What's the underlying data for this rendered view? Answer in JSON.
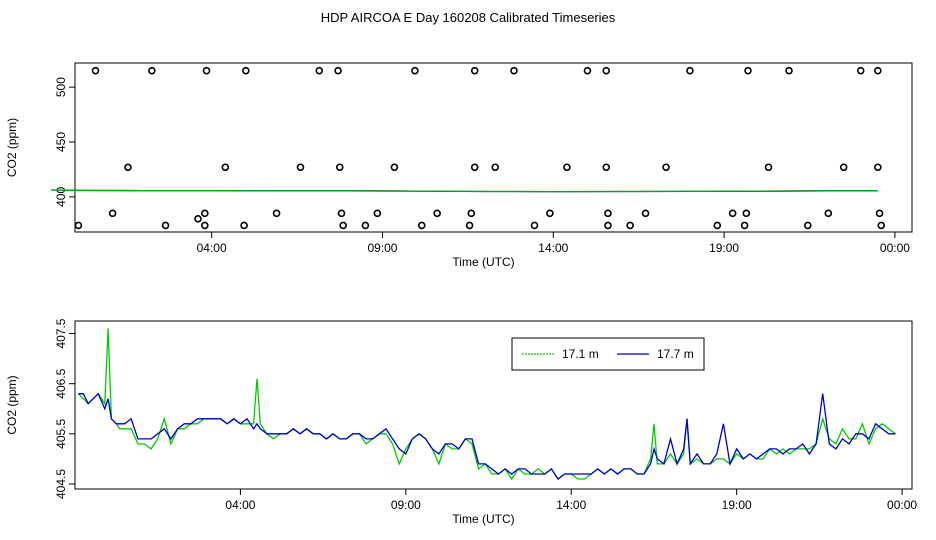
{
  "title": "HDP AIRCOA E  Day 160208  Calibrated Timeseries",
  "chart_data": [
    {
      "type": "scatter",
      "xlabel": "Time (UTC)",
      "ylabel": "CO2 (ppm)",
      "x_unit": "hours since 00:00 on day 160208",
      "xlim": [
        0,
        24.5
      ],
      "ylim": [
        368,
        522
      ],
      "x_ticks": [
        4,
        9,
        14,
        19,
        24
      ],
      "x_tick_labels": [
        "04:00",
        "09:00",
        "14:00",
        "19:00",
        "00:00"
      ],
      "y_ticks": [
        400,
        450,
        500
      ],
      "y_tick_labels": [
        "400",
        "450",
        "500"
      ],
      "grid": false,
      "series": [
        {
          "marker": "open-circle",
          "color": "#000000",
          "x": [
            0.6,
            2.25,
            3.85,
            5.0,
            7.15,
            7.7,
            9.95,
            11.7,
            12.85,
            15.0,
            15.55,
            18.0,
            19.7,
            20.9,
            23.0,
            23.5,
            1.55,
            4.4,
            6.6,
            7.75,
            9.35,
            11.7,
            12.3,
            14.4,
            15.55,
            17.3,
            20.3,
            22.5,
            23.5,
            1.1,
            3.6,
            3.8,
            5.9,
            7.8,
            8.85,
            10.6,
            11.6,
            13.9,
            15.6,
            16.7,
            19.25,
            19.65,
            22.05,
            23.55,
            0.1,
            2.65,
            3.8,
            4.95,
            7.85,
            8.5,
            10.15,
            11.55,
            13.45,
            15.6,
            16.25,
            18.8,
            19.6,
            21.45,
            23.6
          ],
          "y": [
            515,
            515,
            515,
            515,
            515,
            515,
            515,
            515,
            515,
            515,
            515,
            515,
            515,
            515,
            515,
            515,
            427,
            427,
            427,
            427,
            427,
            427,
            427,
            427,
            427,
            427,
            427,
            427,
            427,
            385,
            380,
            385,
            385,
            385,
            385,
            385,
            385,
            385,
            385,
            385,
            385,
            385,
            385,
            385,
            374,
            374,
            374,
            374,
            374,
            374,
            374,
            374,
            374,
            374,
            374,
            374,
            374,
            374,
            374
          ]
        },
        {
          "name": "17.7 m",
          "marker": "line",
          "color": "#0000cc",
          "x": [
            -0.7,
            0,
            2,
            4,
            6,
            8,
            10,
            12,
            14,
            16,
            18,
            20,
            22,
            23.5
          ],
          "y": [
            406.3,
            405.9,
            405.7,
            405.7,
            405.5,
            405.5,
            405.3,
            404.9,
            404.8,
            404.9,
            405.0,
            405.2,
            405.5,
            405.6
          ]
        },
        {
          "name": "17.1 m",
          "marker": "line",
          "color": "#00aa00",
          "x": [
            -0.7,
            0,
            2,
            4,
            6,
            8,
            10,
            12,
            14,
            16,
            18,
            20,
            22,
            23.5
          ],
          "y": [
            406.3,
            405.9,
            405.7,
            405.7,
            405.5,
            405.5,
            405.3,
            404.9,
            404.8,
            404.9,
            405.0,
            405.2,
            405.5,
            405.6
          ]
        }
      ]
    },
    {
      "type": "line",
      "xlabel": "Time (UTC)",
      "ylabel": "CO2 (ppm)",
      "x_unit": "hours since 00:00 on day 160208",
      "xlim": [
        -1.0,
        24.3
      ],
      "ylim": [
        404.4,
        407.75
      ],
      "x_ticks": [
        4,
        9,
        14,
        19,
        24
      ],
      "x_tick_labels": [
        "04:00",
        "09:00",
        "14:00",
        "19:00",
        "00:00"
      ],
      "y_ticks": [
        404.5,
        405.5,
        406.5,
        407.5
      ],
      "y_tick_labels": [
        "404.5",
        "405.5",
        "406.5",
        "407.5"
      ],
      "grid": false,
      "legend_position": "top-right",
      "series": [
        {
          "name": "17.1 m",
          "color": "#00cc00",
          "x": [
            -0.9,
            -0.75,
            -0.6,
            -0.45,
            -0.3,
            -0.1,
            0.0,
            0.1,
            0.25,
            0.35,
            0.5,
            0.7,
            0.9,
            1.1,
            1.3,
            1.5,
            1.7,
            1.9,
            2.1,
            2.3,
            2.5,
            2.7,
            2.9,
            3.1,
            3.4,
            3.6,
            3.8,
            4.0,
            4.2,
            4.4,
            4.5,
            4.6,
            4.8,
            5.0,
            5.2,
            5.4,
            5.6,
            5.8,
            6.0,
            6.2,
            6.4,
            6.6,
            6.8,
            7.0,
            7.2,
            7.4,
            7.6,
            7.8,
            8.0,
            8.2,
            8.4,
            8.6,
            8.8,
            9.0,
            9.2,
            9.4,
            9.6,
            9.8,
            10.0,
            10.2,
            10.4,
            10.6,
            10.8,
            11.0,
            11.2,
            11.4,
            11.6,
            11.8,
            12.0,
            12.2,
            12.4,
            12.6,
            12.8,
            13.0,
            13.2,
            13.4,
            13.6,
            13.8,
            14.0,
            14.2,
            14.4,
            14.6,
            14.8,
            15.0,
            15.2,
            15.4,
            15.6,
            15.8,
            16.0,
            16.2,
            16.4,
            16.5,
            16.6,
            16.8,
            17.0,
            17.2,
            17.4,
            17.5,
            17.6,
            17.8,
            18.0,
            18.2,
            18.4,
            18.6,
            18.8,
            19.0,
            19.2,
            19.4,
            19.6,
            19.8,
            20.0,
            20.2,
            20.4,
            20.6,
            20.8,
            21.0,
            21.2,
            21.4,
            21.6,
            21.8,
            22.0,
            22.2,
            22.4,
            22.6,
            22.8,
            23.0,
            23.2,
            23.4,
            23.6,
            23.8
          ],
          "y": [
            406.3,
            406.2,
            406.1,
            406.2,
            406.3,
            406.1,
            407.6,
            405.8,
            405.7,
            405.6,
            405.6,
            405.6,
            405.3,
            405.3,
            405.2,
            405.4,
            405.8,
            405.3,
            405.6,
            405.6,
            405.7,
            405.7,
            405.8,
            405.8,
            405.8,
            405.7,
            405.8,
            405.7,
            405.7,
            405.7,
            406.6,
            405.7,
            405.5,
            405.4,
            405.5,
            405.5,
            405.6,
            405.5,
            405.6,
            405.5,
            405.5,
            405.4,
            405.5,
            405.4,
            405.4,
            405.5,
            405.5,
            405.3,
            405.4,
            405.5,
            405.5,
            405.3,
            404.9,
            405.2,
            405.4,
            405.5,
            405.4,
            405.2,
            404.9,
            405.3,
            405.2,
            405.2,
            405.4,
            405.3,
            404.8,
            404.9,
            404.7,
            404.7,
            404.8,
            404.6,
            404.8,
            404.7,
            404.7,
            404.8,
            404.7,
            404.8,
            404.6,
            404.7,
            404.7,
            404.6,
            404.6,
            404.7,
            404.8,
            404.7,
            404.8,
            404.7,
            404.8,
            404.8,
            404.7,
            404.7,
            405.0,
            405.7,
            404.9,
            404.9,
            405.1,
            404.9,
            405.1,
            405.8,
            404.9,
            405.0,
            404.9,
            404.9,
            405.0,
            405.0,
            404.9,
            405.1,
            405.0,
            405.1,
            405.0,
            405.0,
            405.2,
            405.1,
            405.2,
            405.1,
            405.2,
            405.2,
            405.2,
            405.3,
            405.8,
            405.4,
            405.3,
            405.6,
            405.4,
            405.4,
            405.7,
            405.3,
            405.6,
            405.7,
            405.6,
            405.5
          ]
        },
        {
          "name": "17.7 m",
          "color": "#0000cc",
          "x": [
            -0.9,
            -0.75,
            -0.6,
            -0.45,
            -0.3,
            -0.1,
            0.0,
            0.1,
            0.25,
            0.35,
            0.5,
            0.7,
            0.9,
            1.1,
            1.3,
            1.5,
            1.7,
            1.9,
            2.1,
            2.3,
            2.5,
            2.7,
            2.9,
            3.1,
            3.4,
            3.6,
            3.8,
            4.0,
            4.2,
            4.4,
            4.5,
            4.6,
            4.8,
            5.0,
            5.2,
            5.4,
            5.6,
            5.8,
            6.0,
            6.2,
            6.4,
            6.6,
            6.8,
            7.0,
            7.2,
            7.4,
            7.6,
            7.8,
            8.0,
            8.2,
            8.4,
            8.6,
            8.8,
            9.0,
            9.2,
            9.4,
            9.6,
            9.8,
            10.0,
            10.2,
            10.4,
            10.6,
            10.8,
            11.0,
            11.2,
            11.4,
            11.6,
            11.8,
            12.0,
            12.2,
            12.4,
            12.6,
            12.8,
            13.0,
            13.2,
            13.4,
            13.6,
            13.8,
            14.0,
            14.2,
            14.4,
            14.6,
            14.8,
            15.0,
            15.2,
            15.4,
            15.6,
            15.8,
            16.0,
            16.2,
            16.4,
            16.5,
            16.6,
            16.8,
            17.0,
            17.2,
            17.4,
            17.5,
            17.6,
            17.8,
            18.0,
            18.2,
            18.4,
            18.6,
            18.8,
            19.0,
            19.2,
            19.4,
            19.6,
            19.8,
            20.0,
            20.2,
            20.4,
            20.6,
            20.8,
            21.0,
            21.2,
            21.4,
            21.6,
            21.8,
            22.0,
            22.2,
            22.4,
            22.6,
            22.8,
            23.0,
            23.2,
            23.4,
            23.6,
            23.8
          ],
          "y": [
            406.3,
            406.3,
            406.1,
            406.2,
            406.3,
            406.0,
            406.2,
            405.8,
            405.7,
            405.7,
            405.7,
            405.8,
            405.4,
            405.4,
            405.4,
            405.5,
            405.6,
            405.4,
            405.6,
            405.7,
            405.7,
            405.8,
            405.8,
            405.8,
            405.8,
            405.7,
            405.8,
            405.7,
            405.8,
            405.6,
            405.7,
            405.6,
            405.5,
            405.5,
            405.5,
            405.5,
            405.6,
            405.5,
            405.6,
            405.5,
            405.5,
            405.4,
            405.5,
            405.4,
            405.4,
            405.5,
            405.5,
            405.4,
            405.4,
            405.5,
            405.6,
            405.4,
            405.2,
            405.1,
            405.4,
            405.5,
            405.4,
            405.2,
            405.1,
            405.3,
            405.3,
            405.2,
            405.4,
            405.4,
            404.9,
            404.9,
            404.8,
            404.7,
            404.8,
            404.7,
            404.8,
            404.8,
            404.7,
            404.7,
            404.7,
            404.8,
            404.6,
            404.7,
            404.7,
            404.7,
            404.7,
            404.7,
            404.8,
            404.7,
            404.8,
            404.7,
            404.8,
            404.8,
            404.7,
            404.7,
            404.9,
            405.2,
            405.0,
            404.9,
            405.4,
            404.9,
            405.2,
            405.8,
            404.9,
            405.1,
            404.9,
            404.9,
            405.1,
            405.7,
            404.9,
            405.2,
            405.0,
            405.1,
            405.0,
            405.1,
            405.2,
            405.2,
            405.1,
            405.2,
            405.2,
            405.3,
            405.1,
            405.3,
            406.3,
            405.3,
            405.2,
            405.4,
            405.3,
            405.5,
            405.5,
            405.4,
            405.7,
            405.6,
            405.5,
            405.5
          ]
        }
      ],
      "legend": [
        "17.1 m",
        "17.7 m"
      ]
    }
  ]
}
